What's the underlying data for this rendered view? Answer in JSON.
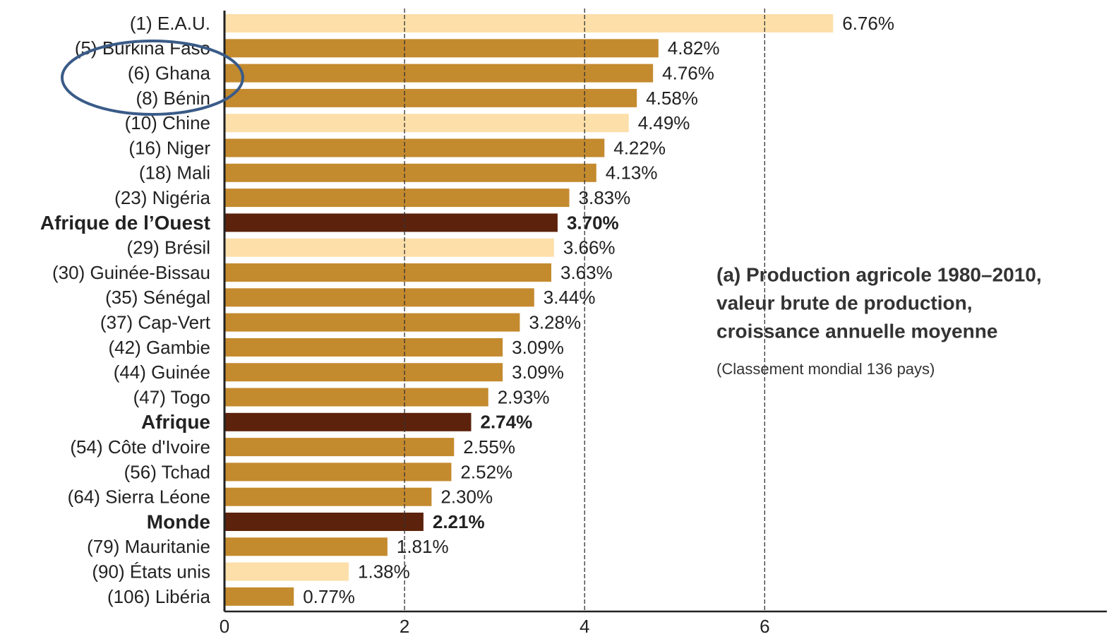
{
  "chart_data": {
    "type": "bar",
    "orientation": "horizontal",
    "annotation": [
      "(a) Production agricole 1980–2010,",
      "valeur brute de production,",
      "croissance annuelle moyenne"
    ],
    "subtitle": "(Classement mondial 136 pays)",
    "categories": [
      "(1) E.A.U.",
      "(5) Burkina Faso",
      "(6) Ghana",
      "(8) Bénin",
      "(10) Chine",
      "(16) Niger",
      "(18) Mali",
      "(23) Nigéria",
      "Afrique de l’Ouest",
      "(29) Brésil",
      "(30) Guinée-Bissau",
      "(35) Sénégal",
      "(37) Cap-Vert",
      "(42) Gambie",
      "(44) Guinée",
      "(47) Togo",
      "Afrique",
      "(54) Côte d'Ivoire",
      "(56) Tchad",
      "(64) Sierra Léone",
      "Monde",
      "(79) Mauritanie",
      "(90) États unis",
      "(106) Libéria"
    ],
    "values": [
      6.76,
      4.82,
      4.76,
      4.58,
      4.49,
      4.22,
      4.13,
      3.83,
      3.7,
      3.66,
      3.63,
      3.44,
      3.28,
      3.09,
      3.09,
      2.93,
      2.74,
      2.55,
      2.52,
      2.3,
      2.21,
      1.81,
      1.38,
      0.77
    ],
    "value_labels": [
      "6.76%",
      "4.82%",
      "4.76%",
      "4.58%",
      "4.49%",
      "4.22%",
      "4.13%",
      "3.83%",
      "3.70%",
      "3.66%",
      "3.63%",
      "3.44%",
      "3.28%",
      "3.09%",
      "3.09%",
      "2.93%",
      "2.74%",
      "2.55%",
      "2.52%",
      "2.30%",
      "2.21%",
      "1.81%",
      "1.38%",
      "0.77%"
    ],
    "colors": [
      "#fddfa9",
      "#c48a2e",
      "#c48a2e",
      "#c48a2e",
      "#fddfa9",
      "#c48a2e",
      "#c48a2e",
      "#c48a2e",
      "#5c220c",
      "#fddfa9",
      "#c48a2e",
      "#c48a2e",
      "#c48a2e",
      "#c48a2e",
      "#c48a2e",
      "#c48a2e",
      "#5c220c",
      "#c48a2e",
      "#c48a2e",
      "#c48a2e",
      "#5c220c",
      "#c48a2e",
      "#fddfa9",
      "#c48a2e"
    ],
    "highlight_color": "#5c220c",
    "xlim": [
      0,
      9.8
    ],
    "xticks": [
      0,
      2,
      4,
      6
    ],
    "grid": true
  }
}
